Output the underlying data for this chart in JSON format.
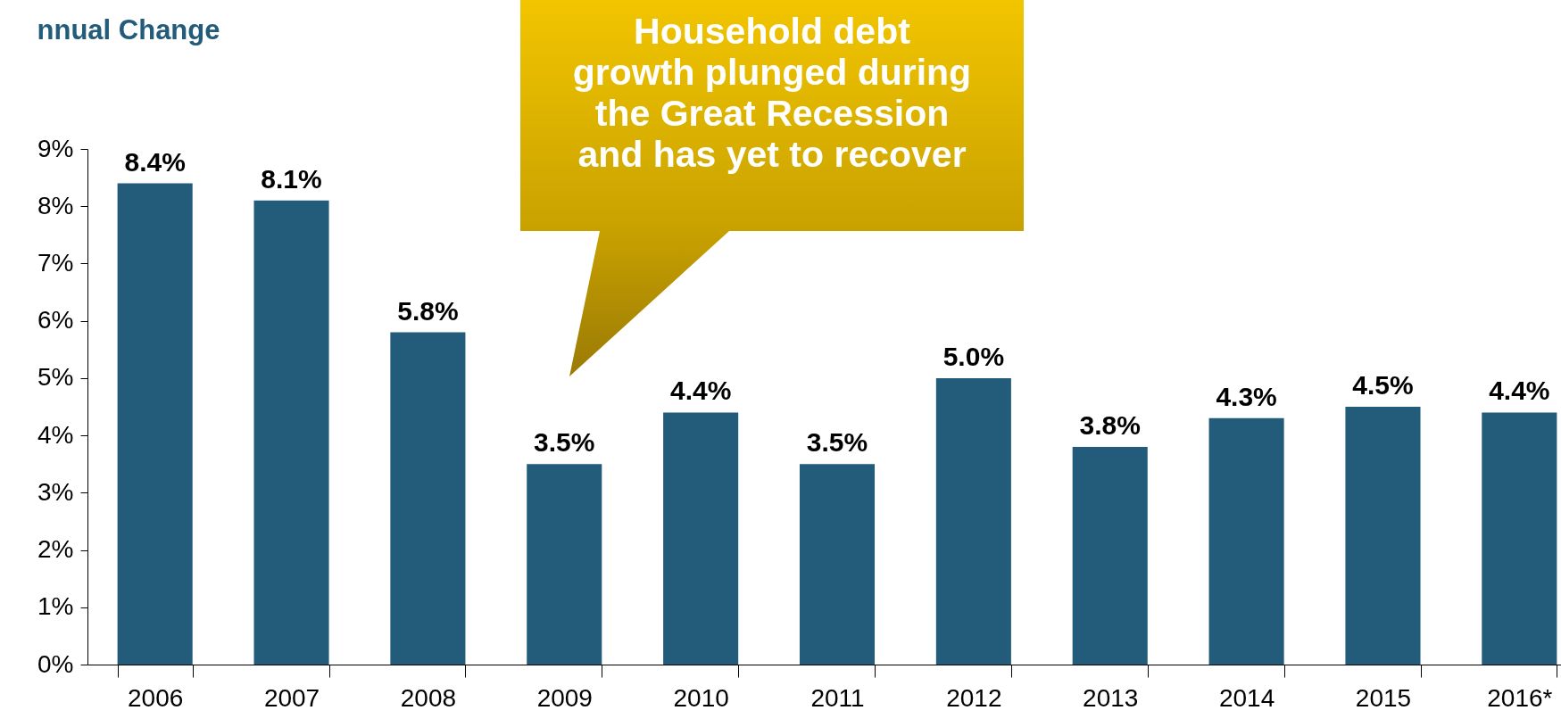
{
  "chart_data": {
    "type": "bar",
    "title": "nnual Change",
    "categories": [
      "2006",
      "2007",
      "2008",
      "2009",
      "2010",
      "2011",
      "2012",
      "2013",
      "2014",
      "2015",
      "2016*"
    ],
    "values": [
      8.4,
      8.1,
      5.8,
      3.5,
      4.4,
      3.5,
      5.0,
      3.8,
      4.3,
      4.5,
      4.4
    ],
    "value_labels": [
      "8.4%",
      "8.1%",
      "5.8%",
      "3.5%",
      "4.4%",
      "3.5%",
      "5.0%",
      "3.8%",
      "4.3%",
      "4.5%",
      "4.4%"
    ],
    "color": "#235b7a",
    "ylim": [
      0,
      9
    ],
    "yticks": [
      {
        "value": 0,
        "label": "0%"
      },
      {
        "value": 1,
        "label": "1%"
      },
      {
        "value": 2,
        "label": "2%"
      },
      {
        "value": 3,
        "label": "3%"
      },
      {
        "value": 4,
        "label": "4%"
      },
      {
        "value": 5,
        "label": "5%"
      },
      {
        "value": 6,
        "label": "6%"
      },
      {
        "value": 7,
        "label": "7%"
      },
      {
        "value": 8,
        "label": "8%"
      },
      {
        "value": 9,
        "label": "9%"
      }
    ],
    "grid": false,
    "annotations": [
      "Household debt\ngrowth plunged during\nthe Great Recession\nand has yet to recover"
    ]
  }
}
